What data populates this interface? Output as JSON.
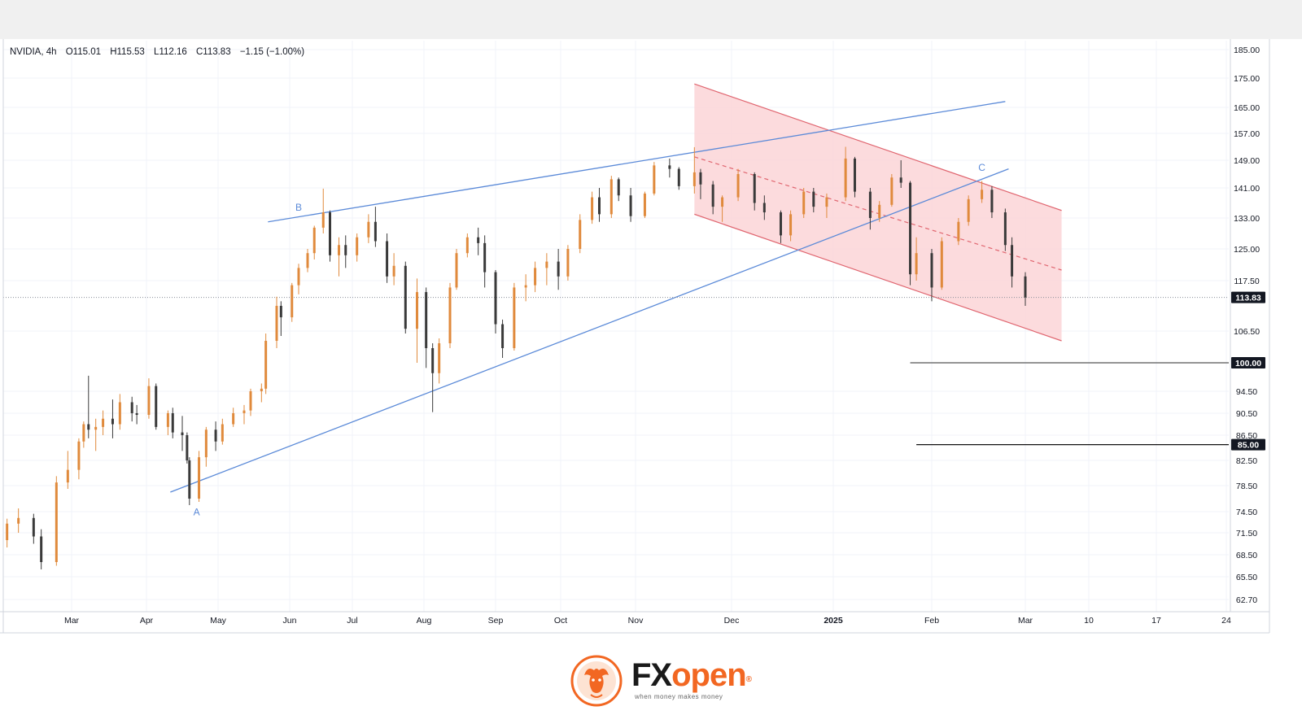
{
  "chart_data": {
    "type": "candlestick",
    "header": {
      "symbol": "NVIDIA",
      "interval": "4h",
      "open_label": "O115.01",
      "high_label": "H115.53",
      "low_label": "L112.16",
      "close_label": "C113.83",
      "change_label": "−1.15 (−1.00%)"
    },
    "y_ticks": [
      "185.00",
      "175.00",
      "165.00",
      "157.00",
      "149.00",
      "141.00",
      "133.00",
      "125.00",
      "117.50",
      "106.50",
      "94.50",
      "90.50",
      "86.50",
      "82.50",
      "78.50",
      "74.50",
      "71.50",
      "68.50",
      "65.50",
      "62.70"
    ],
    "x_ticks": [
      "Mar",
      "Apr",
      "May",
      "Jun",
      "Jul",
      "Aug",
      "Sep",
      "Oct",
      "Nov",
      "Dec",
      "2025",
      "Feb",
      "Mar",
      "10",
      "17",
      "24"
    ],
    "current_price": 113.83,
    "current_price_label": "113.83",
    "levels": [
      {
        "price": 100.0,
        "label": "100.00",
        "from": "2025-01-27",
        "color": "#555555"
      },
      {
        "price": 85.0,
        "label": "85.00",
        "from": "2025-01-29",
        "color": "#111111"
      }
    ],
    "wave_labels": [
      {
        "text": "A",
        "date": "2024-04-22",
        "price": 74.0
      },
      {
        "text": "B",
        "date": "2024-06-07",
        "price": 135.0
      },
      {
        "text": "C",
        "date": "2025-02-18",
        "price": 146.0
      }
    ],
    "trendlines": {
      "upper": [
        {
          "date": "2024-05-24",
          "price": 132.0
        },
        {
          "date": "2025-02-25",
          "price": 167.0
        }
      ],
      "lower": [
        {
          "date": "2024-04-11",
          "price": 77.5
        },
        {
          "date": "2025-02-26",
          "price": 146.5
        }
      ]
    },
    "channel": {
      "start": "2024-11-20",
      "end": "2025-03-07",
      "upper": [
        173.0,
        135.0
      ],
      "lower": [
        134.0,
        104.5
      ],
      "mid": [
        150.0,
        120.0
      ],
      "fill": "#fbd5d7",
      "stroke": "#e06670"
    },
    "candles": [
      [
        "2024-02-13",
        70.5,
        73.5,
        69.5,
        72.8
      ],
      [
        "2024-02-16",
        72.8,
        75.0,
        71.5,
        73.6
      ],
      [
        "2024-02-20",
        73.6,
        74.2,
        70.0,
        71.0
      ],
      [
        "2024-02-22",
        71.0,
        72.0,
        66.5,
        67.5
      ],
      [
        "2024-02-26",
        67.5,
        80.0,
        67.0,
        79.0
      ],
      [
        "2024-02-29",
        79.0,
        84.0,
        78.0,
        81.0
      ],
      [
        "2024-03-04",
        81.0,
        86.0,
        79.5,
        85.5
      ],
      [
        "2024-03-06",
        85.5,
        89.0,
        84.5,
        88.5
      ],
      [
        "2024-03-08",
        88.5,
        97.5,
        86.0,
        87.5
      ],
      [
        "2024-03-11",
        87.5,
        89.5,
        84.0,
        88.0
      ],
      [
        "2024-03-14",
        88.0,
        91.0,
        86.5,
        89.5
      ],
      [
        "2024-03-18",
        89.5,
        93.0,
        86.0,
        88.5
      ],
      [
        "2024-03-21",
        88.5,
        94.0,
        87.5,
        92.5
      ],
      [
        "2024-03-26",
        92.5,
        93.5,
        89.0,
        90.5
      ],
      [
        "2024-03-28",
        90.5,
        92.0,
        88.5,
        90.2
      ],
      [
        "2024-04-02",
        90.2,
        97.0,
        89.5,
        95.5
      ],
      [
        "2024-04-05",
        95.5,
        96.0,
        87.5,
        88.0
      ],
      [
        "2024-04-10",
        88.0,
        91.0,
        86.5,
        90.5
      ],
      [
        "2024-04-12",
        90.5,
        91.5,
        86.0,
        87.0
      ],
      [
        "2024-04-16",
        87.0,
        90.0,
        84.0,
        86.5
      ],
      [
        "2024-04-18",
        86.5,
        87.0,
        82.0,
        82.5
      ],
      [
        "2024-04-19",
        82.5,
        83.0,
        75.5,
        76.5
      ],
      [
        "2024-04-23",
        76.5,
        84.0,
        76.0,
        83.0
      ],
      [
        "2024-04-26",
        83.0,
        88.0,
        81.5,
        87.5
      ],
      [
        "2024-04-30",
        87.5,
        89.0,
        84.0,
        85.5
      ],
      [
        "2024-05-03",
        85.5,
        89.5,
        85.0,
        88.5
      ],
      [
        "2024-05-08",
        88.5,
        91.5,
        88.0,
        90.5
      ],
      [
        "2024-05-13",
        90.5,
        92.0,
        88.5,
        91.0
      ],
      [
        "2024-05-16",
        91.0,
        95.0,
        90.0,
        94.5
      ],
      [
        "2024-05-21",
        94.5,
        96.0,
        92.5,
        95.0
      ],
      [
        "2024-05-23",
        95.0,
        106.0,
        94.0,
        104.5
      ],
      [
        "2024-05-28",
        104.5,
        114.0,
        103.0,
        112.0
      ],
      [
        "2024-05-30",
        112.0,
        113.0,
        105.5,
        109.5
      ],
      [
        "2024-06-04",
        109.5,
        117.0,
        108.5,
        116.5
      ],
      [
        "2024-06-07",
        116.5,
        121.5,
        114.5,
        120.5
      ],
      [
        "2024-06-11",
        120.5,
        125.0,
        119.5,
        124.0
      ],
      [
        "2024-06-14",
        124.0,
        131.0,
        122.5,
        130.5
      ],
      [
        "2024-06-18",
        130.5,
        140.8,
        129.0,
        134.5
      ],
      [
        "2024-06-21",
        134.5,
        135.0,
        122.0,
        123.5
      ],
      [
        "2024-06-25",
        123.5,
        128.0,
        118.5,
        126.0
      ],
      [
        "2024-06-28",
        126.0,
        128.5,
        120.5,
        123.5
      ],
      [
        "2024-07-03",
        123.5,
        129.0,
        122.0,
        128.0
      ],
      [
        "2024-07-08",
        128.0,
        134.0,
        126.5,
        132.0
      ],
      [
        "2024-07-11",
        132.0,
        136.0,
        125.5,
        127.0
      ],
      [
        "2024-07-16",
        127.0,
        129.0,
        117.0,
        118.5
      ],
      [
        "2024-07-19",
        118.5,
        124.0,
        116.5,
        121.0
      ],
      [
        "2024-07-24",
        121.0,
        122.0,
        106.0,
        107.0
      ],
      [
        "2024-07-29",
        107.0,
        118.0,
        100.0,
        115.0
      ],
      [
        "2024-08-02",
        115.0,
        116.0,
        99.0,
        103.0
      ],
      [
        "2024-08-05",
        103.0,
        104.0,
        90.7,
        98.0
      ],
      [
        "2024-08-08",
        98.0,
        105.0,
        96.0,
        104.0
      ],
      [
        "2024-08-13",
        104.0,
        117.0,
        103.0,
        116.0
      ],
      [
        "2024-08-16",
        116.0,
        125.0,
        115.5,
        124.0
      ],
      [
        "2024-08-21",
        124.0,
        129.0,
        123.0,
        128.0
      ],
      [
        "2024-08-26",
        128.0,
        130.5,
        123.5,
        126.5
      ],
      [
        "2024-08-29",
        126.5,
        128.5,
        116.0,
        119.5
      ],
      [
        "2024-09-03",
        119.5,
        120.0,
        106.0,
        108.0
      ],
      [
        "2024-09-06",
        108.0,
        109.0,
        101.0,
        103.0
      ],
      [
        "2024-09-11",
        103.0,
        117.0,
        102.5,
        116.0
      ],
      [
        "2024-09-16",
        116.0,
        119.0,
        113.0,
        116.5
      ],
      [
        "2024-09-20",
        116.5,
        122.0,
        115.0,
        120.5
      ],
      [
        "2024-09-25",
        120.5,
        124.0,
        116.5,
        122.0
      ],
      [
        "2024-09-30",
        122.0,
        125.0,
        115.5,
        118.5
      ],
      [
        "2024-10-04",
        118.5,
        126.0,
        117.5,
        125.0
      ],
      [
        "2024-10-09",
        125.0,
        134.0,
        124.0,
        132.5
      ],
      [
        "2024-10-14",
        132.5,
        140.0,
        131.5,
        138.5
      ],
      [
        "2024-10-17",
        138.5,
        141.0,
        132.0,
        134.0
      ],
      [
        "2024-10-22",
        134.0,
        144.5,
        133.0,
        143.5
      ],
      [
        "2024-10-25",
        143.5,
        144.0,
        137.5,
        139.0
      ],
      [
        "2024-10-30",
        139.0,
        141.0,
        132.0,
        133.5
      ],
      [
        "2024-11-04",
        133.5,
        140.0,
        133.0,
        139.5
      ],
      [
        "2024-11-07",
        139.5,
        148.5,
        139.0,
        147.5
      ],
      [
        "2024-11-12",
        147.5,
        149.5,
        144.0,
        146.5
      ],
      [
        "2024-11-15",
        146.5,
        147.0,
        140.5,
        141.5
      ],
      [
        "2024-11-20",
        141.5,
        152.9,
        139.5,
        145.5
      ],
      [
        "2024-11-22",
        145.5,
        146.5,
        138.0,
        142.0
      ],
      [
        "2024-11-26",
        142.0,
        143.0,
        134.0,
        136.0
      ],
      [
        "2024-11-29",
        136.0,
        139.0,
        132.0,
        138.5
      ],
      [
        "2024-12-04",
        138.5,
        146.5,
        137.5,
        145.0
      ],
      [
        "2024-12-09",
        145.0,
        145.5,
        135.0,
        137.0
      ],
      [
        "2024-12-12",
        137.0,
        139.0,
        132.5,
        134.5
      ],
      [
        "2024-12-17",
        134.5,
        135.0,
        126.5,
        128.5
      ],
      [
        "2024-12-20",
        128.5,
        135.0,
        127.0,
        134.0
      ],
      [
        "2024-12-24",
        134.0,
        141.0,
        133.0,
        140.0
      ],
      [
        "2024-12-27",
        140.0,
        141.0,
        134.5,
        136.0
      ],
      [
        "2024-12-31",
        136.0,
        139.5,
        133.0,
        138.5
      ],
      [
        "2025-01-06",
        138.5,
        153.0,
        137.5,
        149.5
      ],
      [
        "2025-01-09",
        149.5,
        150.0,
        138.5,
        140.0
      ],
      [
        "2025-01-14",
        140.0,
        141.0,
        130.0,
        133.0
      ],
      [
        "2025-01-17",
        133.0,
        137.5,
        132.0,
        136.5
      ],
      [
        "2025-01-21",
        136.5,
        145.0,
        136.0,
        144.0
      ],
      [
        "2025-01-24",
        144.0,
        149.0,
        141.0,
        142.5
      ],
      [
        "2025-01-27",
        142.5,
        143.0,
        116.5,
        119.0
      ],
      [
        "2025-01-29",
        119.0,
        128.0,
        117.5,
        124.0
      ],
      [
        "2025-02-03",
        124.0,
        125.0,
        113.0,
        116.0
      ],
      [
        "2025-02-06",
        116.0,
        128.0,
        115.5,
        127.0
      ],
      [
        "2025-02-11",
        127.0,
        133.0,
        126.0,
        132.0
      ],
      [
        "2025-02-14",
        132.0,
        139.0,
        131.0,
        138.0
      ],
      [
        "2025-02-18",
        138.0,
        143.0,
        137.0,
        140.5
      ],
      [
        "2025-02-21",
        140.5,
        141.5,
        133.0,
        134.5
      ],
      [
        "2025-02-25",
        134.5,
        135.5,
        124.5,
        126.0
      ],
      [
        "2025-02-27",
        126.0,
        128.0,
        116.0,
        118.5
      ],
      [
        "2025-03-03",
        118.5,
        119.5,
        112.0,
        113.83
      ]
    ]
  },
  "brand": {
    "fx": "FX",
    "open": "open",
    "reg": "®",
    "slogan": "when money makes money"
  }
}
